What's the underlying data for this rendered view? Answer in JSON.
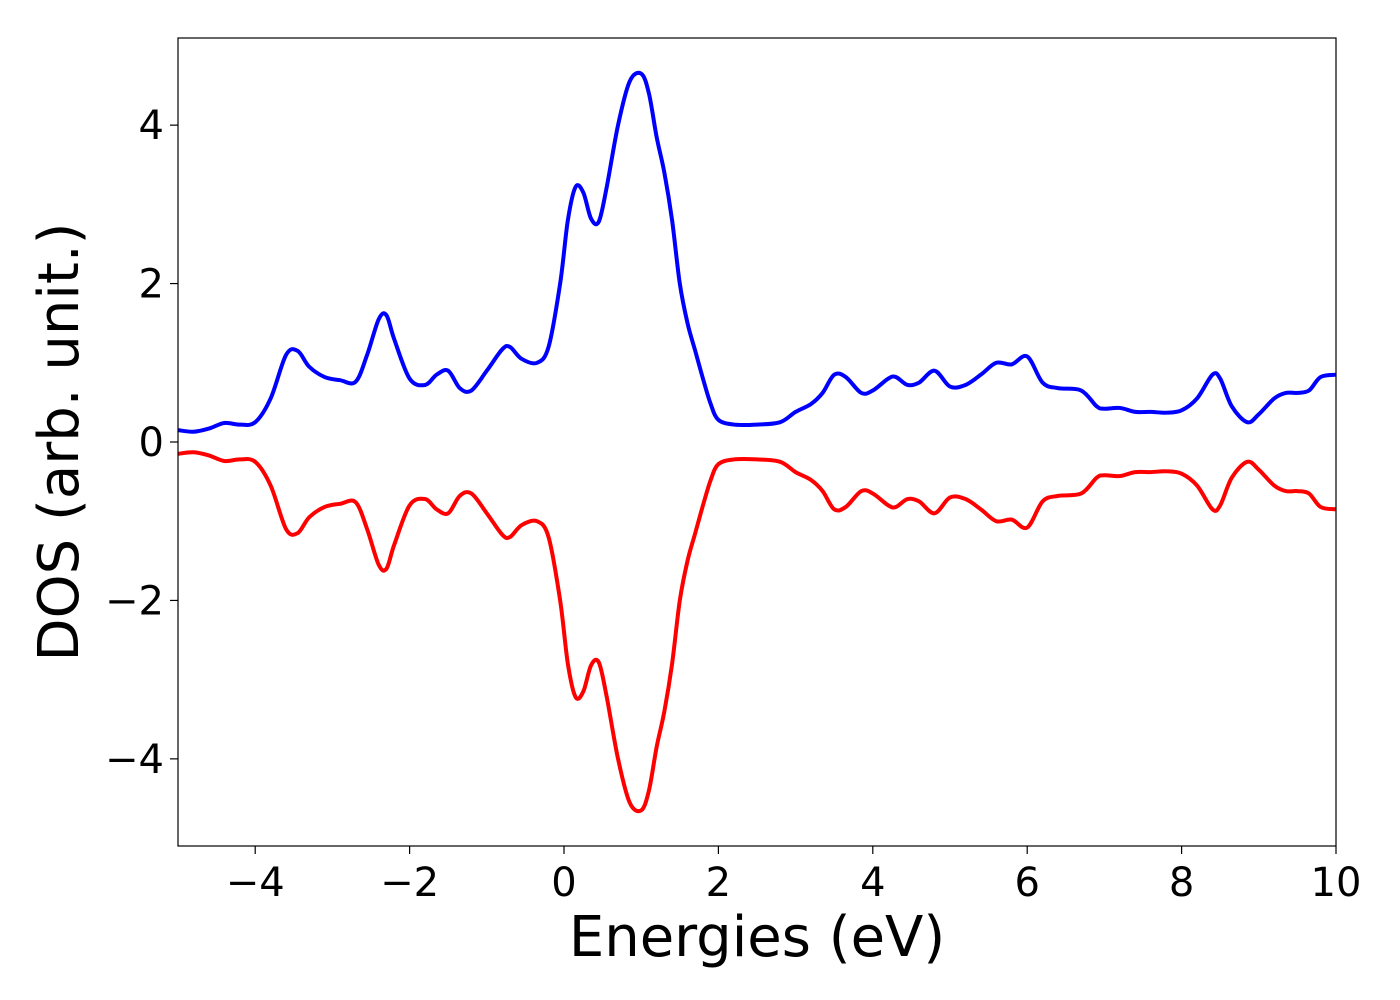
{
  "chart_data": {
    "type": "line",
    "title": "",
    "xlabel": "Energies (eV)",
    "ylabel": "DOS (arb. unit.)",
    "xlim": [
      -5,
      10
    ],
    "ylim": [
      -5.1,
      5.1
    ],
    "xticks": [
      -4,
      -2,
      0,
      2,
      4,
      6,
      8,
      10
    ],
    "xtick_labels": [
      "−4",
      "−2",
      "0",
      "2",
      "4",
      "6",
      "8",
      "10"
    ],
    "yticks": [
      -4,
      -2,
      0,
      2,
      4
    ],
    "ytick_labels": [
      "−4",
      "−2",
      "0",
      "2",
      "4"
    ],
    "grid": false,
    "legend": "none",
    "series": [
      {
        "color": "#0000ff",
        "x": [
          -5.0,
          -4.8,
          -4.6,
          -4.4,
          -4.2,
          -4.0,
          -3.8,
          -3.6,
          -3.45,
          -3.3,
          -3.1,
          -2.9,
          -2.7,
          -2.55,
          -2.4,
          -2.3,
          -2.2,
          -2.0,
          -1.8,
          -1.65,
          -1.5,
          -1.35,
          -1.2,
          -1.0,
          -0.8,
          -0.7,
          -0.55,
          -0.35,
          -0.2,
          -0.05,
          0.05,
          0.15,
          0.25,
          0.35,
          0.45,
          0.55,
          0.7,
          0.85,
          1.0,
          1.1,
          1.2,
          1.3,
          1.4,
          1.5,
          1.6,
          1.7,
          1.8,
          1.9,
          2.0,
          2.2,
          2.5,
          2.8,
          3.0,
          3.2,
          3.35,
          3.5,
          3.65,
          3.85,
          4.0,
          4.2,
          4.3,
          4.45,
          4.6,
          4.8,
          5.0,
          5.2,
          5.4,
          5.6,
          5.8,
          6.0,
          6.2,
          6.4,
          6.7,
          6.9,
          7.0,
          7.2,
          7.4,
          7.6,
          7.8,
          8.0,
          8.2,
          8.4,
          8.5,
          8.65,
          8.85,
          9.0,
          9.2,
          9.35,
          9.5,
          9.65,
          9.8,
          10.0
        ],
        "y": [
          0.15,
          0.13,
          0.17,
          0.24,
          0.22,
          0.25,
          0.55,
          1.1,
          1.15,
          0.95,
          0.82,
          0.78,
          0.76,
          1.1,
          1.55,
          1.6,
          1.3,
          0.8,
          0.72,
          0.85,
          0.9,
          0.68,
          0.65,
          0.9,
          1.17,
          1.2,
          1.05,
          1.0,
          1.2,
          2.0,
          2.8,
          3.22,
          3.15,
          2.82,
          2.78,
          3.2,
          4.0,
          4.55,
          4.65,
          4.4,
          3.85,
          3.4,
          2.8,
          2.0,
          1.5,
          1.15,
          0.8,
          0.48,
          0.28,
          0.22,
          0.22,
          0.25,
          0.38,
          0.48,
          0.62,
          0.85,
          0.82,
          0.62,
          0.65,
          0.8,
          0.82,
          0.72,
          0.75,
          0.9,
          0.7,
          0.72,
          0.85,
          1.0,
          0.98,
          1.08,
          0.75,
          0.68,
          0.65,
          0.45,
          0.42,
          0.43,
          0.38,
          0.38,
          0.37,
          0.4,
          0.55,
          0.85,
          0.8,
          0.45,
          0.25,
          0.35,
          0.55,
          0.62,
          0.62,
          0.65,
          0.82,
          0.85
        ]
      },
      {
        "color": "#ff0000",
        "x": [
          -5.0,
          -4.8,
          -4.6,
          -4.4,
          -4.2,
          -4.0,
          -3.8,
          -3.6,
          -3.45,
          -3.3,
          -3.1,
          -2.9,
          -2.7,
          -2.55,
          -2.4,
          -2.3,
          -2.2,
          -2.0,
          -1.8,
          -1.65,
          -1.5,
          -1.35,
          -1.2,
          -1.0,
          -0.8,
          -0.7,
          -0.55,
          -0.35,
          -0.2,
          -0.05,
          0.05,
          0.15,
          0.25,
          0.35,
          0.45,
          0.55,
          0.7,
          0.85,
          1.0,
          1.1,
          1.2,
          1.3,
          1.4,
          1.5,
          1.6,
          1.7,
          1.8,
          1.9,
          2.0,
          2.2,
          2.5,
          2.8,
          3.0,
          3.2,
          3.35,
          3.5,
          3.65,
          3.85,
          4.0,
          4.2,
          4.3,
          4.45,
          4.6,
          4.8,
          5.0,
          5.2,
          5.4,
          5.6,
          5.8,
          6.0,
          6.2,
          6.4,
          6.7,
          6.9,
          7.0,
          7.2,
          7.4,
          7.6,
          7.8,
          8.0,
          8.2,
          8.4,
          8.5,
          8.65,
          8.85,
          9.0,
          9.2,
          9.35,
          9.5,
          9.65,
          9.8,
          10.0
        ],
        "y": [
          -0.15,
          -0.13,
          -0.17,
          -0.24,
          -0.22,
          -0.25,
          -0.55,
          -1.1,
          -1.15,
          -0.95,
          -0.82,
          -0.78,
          -0.76,
          -1.1,
          -1.55,
          -1.6,
          -1.3,
          -0.8,
          -0.72,
          -0.85,
          -0.9,
          -0.68,
          -0.65,
          -0.9,
          -1.17,
          -1.2,
          -1.05,
          -1.0,
          -1.2,
          -2.0,
          -2.8,
          -3.22,
          -3.15,
          -2.82,
          -2.78,
          -3.2,
          -4.0,
          -4.55,
          -4.65,
          -4.4,
          -3.85,
          -3.4,
          -2.8,
          -2.0,
          -1.5,
          -1.15,
          -0.8,
          -0.48,
          -0.28,
          -0.22,
          -0.22,
          -0.25,
          -0.38,
          -0.48,
          -0.62,
          -0.85,
          -0.82,
          -0.62,
          -0.65,
          -0.8,
          -0.82,
          -0.72,
          -0.75,
          -0.9,
          -0.7,
          -0.72,
          -0.85,
          -1.0,
          -0.98,
          -1.08,
          -0.75,
          -0.68,
          -0.65,
          -0.45,
          -0.42,
          -0.43,
          -0.38,
          -0.38,
          -0.37,
          -0.4,
          -0.55,
          -0.85,
          -0.8,
          -0.45,
          -0.25,
          -0.35,
          -0.55,
          -0.62,
          -0.62,
          -0.65,
          -0.82,
          -0.85
        ]
      }
    ]
  }
}
